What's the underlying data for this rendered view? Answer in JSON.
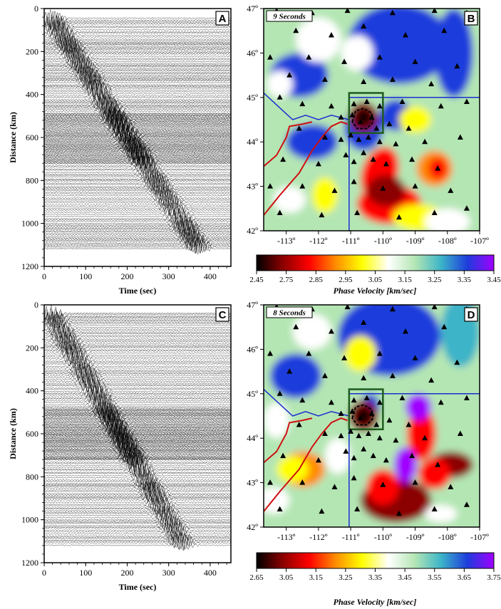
{
  "panels": [
    {
      "id": "A",
      "kind": "record_section",
      "chart_data": {
        "type": "line",
        "xlabel": "Time (sec)",
        "ylabel": "Distance (km)",
        "xlim": [
          0,
          450
        ],
        "ylim": [
          0,
          1200
        ],
        "xticks": [
          0,
          100,
          200,
          300,
          400
        ],
        "yticks": [
          0,
          200,
          400,
          600,
          800,
          1000,
          1200
        ],
        "moveout": {
          "time_at_near": [
            20,
            50
          ],
          "time_at_far": [
            375,
            1120
          ]
        }
      }
    },
    {
      "id": "C",
      "kind": "record_section",
      "chart_data": {
        "type": "line",
        "xlabel": "Time (sec)",
        "ylabel": "Distance (km)",
        "xlim": [
          0,
          450
        ],
        "ylim": [
          0,
          1200
        ],
        "xticks": [
          0,
          100,
          200,
          300,
          400
        ],
        "yticks": [
          0,
          200,
          400,
          600,
          800,
          1000,
          1200
        ],
        "moveout": {
          "time_at_near": [
            18,
            45
          ],
          "time_at_far": [
            330,
            1100
          ]
        }
      }
    },
    {
      "id": "B",
      "kind": "map",
      "period": "9 Seconds",
      "lon_range": [
        -113.7,
        -107
      ],
      "lat_range": [
        42,
        47
      ],
      "lon_ticks": [
        "-113º",
        "-112º",
        "-111º",
        "-110º",
        "-109º",
        "-108º",
        "-107º"
      ],
      "lat_ticks": [
        "42º",
        "43º",
        "44º",
        "45º",
        "46º",
        "47º"
      ],
      "colorbar": {
        "label": "Phase Velocity [km/sec]",
        "ticks": [
          "2.45",
          "2.75",
          "2.85",
          "2.95",
          "3.05",
          "3.15",
          "3.25",
          "3.35",
          "3.45"
        ]
      }
    },
    {
      "id": "D",
      "kind": "map",
      "period": "8 Seconds",
      "lon_range": [
        -113.7,
        -107
      ],
      "lat_range": [
        42,
        47
      ],
      "lon_ticks": [
        "-113º",
        "-112º",
        "-111º",
        "-110º",
        "-109º",
        "-108º",
        "-107º"
      ],
      "lat_ticks": [
        "42º",
        "43º",
        "44º",
        "45º",
        "46º",
        "47º"
      ],
      "colorbar": {
        "label": "Phase Velocity [km/sec]",
        "ticks": [
          "2.65",
          "3.05",
          "3.15",
          "3.25",
          "3.35",
          "3.45",
          "3.55",
          "3.65",
          "3.75"
        ]
      }
    }
  ],
  "colors": {
    "scale": [
      "#000000",
      "#8b0000",
      "#ff0000",
      "#ff8c00",
      "#ffff00",
      "#ffffff",
      "#b4e6b4",
      "#3cb4c8",
      "#1e3cdc",
      "#a000ff"
    ],
    "station": "#000000",
    "snake_river_plain": "#d01010",
    "state_border": "#1a2fd0",
    "park_boundary": "#1f5c1f",
    "caldera": "#000000"
  },
  "stations": [
    [
      -113.3,
      46.95
    ],
    [
      -112.2,
      46.9
    ],
    [
      -111.1,
      46.95
    ],
    [
      -109.7,
      46.9
    ],
    [
      -108.4,
      46.95
    ],
    [
      -107.4,
      46.9
    ],
    [
      -112.7,
      46.5
    ],
    [
      -111.6,
      46.4
    ],
    [
      -110.6,
      46.6
    ],
    [
      -109.3,
      46.4
    ],
    [
      -108.1,
      46.5
    ],
    [
      -113.5,
      45.9
    ],
    [
      -112.3,
      45.9
    ],
    [
      -111.2,
      45.8
    ],
    [
      -110.1,
      45.9
    ],
    [
      -109.0,
      45.8
    ],
    [
      -107.7,
      45.7
    ],
    [
      -112.9,
      45.5
    ],
    [
      -111.8,
      45.4
    ],
    [
      -110.6,
      45.35
    ],
    [
      -109.7,
      45.4
    ],
    [
      -108.5,
      45.3
    ],
    [
      -113.2,
      45.0
    ],
    [
      -112.5,
      44.85
    ],
    [
      -111.6,
      44.8
    ],
    [
      -110.9,
      44.85
    ],
    [
      -110.5,
      44.9
    ],
    [
      -110.1,
      44.8
    ],
    [
      -109.4,
      44.9
    ],
    [
      -108.2,
      44.8
    ],
    [
      -107.4,
      44.9
    ],
    [
      -111.3,
      44.55
    ],
    [
      -110.95,
      44.6
    ],
    [
      -110.7,
      44.45
    ],
    [
      -110.35,
      44.55
    ],
    [
      -110.2,
      44.3
    ],
    [
      -109.8,
      44.4
    ],
    [
      -109.2,
      44.3
    ],
    [
      -112.6,
      44.3
    ],
    [
      -111.8,
      44.1
    ],
    [
      -111.3,
      44.05
    ],
    [
      -111.0,
      44.15
    ],
    [
      -110.75,
      44.05
    ],
    [
      -110.45,
      44.1
    ],
    [
      -110.1,
      44.0
    ],
    [
      -109.6,
      43.95
    ],
    [
      -108.7,
      44.0
    ],
    [
      -107.6,
      44.1
    ],
    [
      -113.1,
      43.6
    ],
    [
      -112.0,
      43.5
    ],
    [
      -111.15,
      43.7
    ],
    [
      -110.9,
      43.55
    ],
    [
      -110.6,
      43.75
    ],
    [
      -110.3,
      43.6
    ],
    [
      -109.9,
      43.5
    ],
    [
      -109.1,
      43.6
    ],
    [
      -108.3,
      43.4
    ],
    [
      -113.5,
      43.0
    ],
    [
      -112.5,
      43.0
    ],
    [
      -111.5,
      42.9
    ],
    [
      -110.9,
      43.1
    ],
    [
      -110.0,
      42.95
    ],
    [
      -109.0,
      43.0
    ],
    [
      -107.9,
      42.9
    ],
    [
      -113.2,
      42.4
    ],
    [
      -111.9,
      42.35
    ],
    [
      -110.8,
      42.4
    ],
    [
      -109.5,
      42.3
    ],
    [
      -108.4,
      42.4
    ],
    [
      -107.4,
      42.5
    ]
  ]
}
